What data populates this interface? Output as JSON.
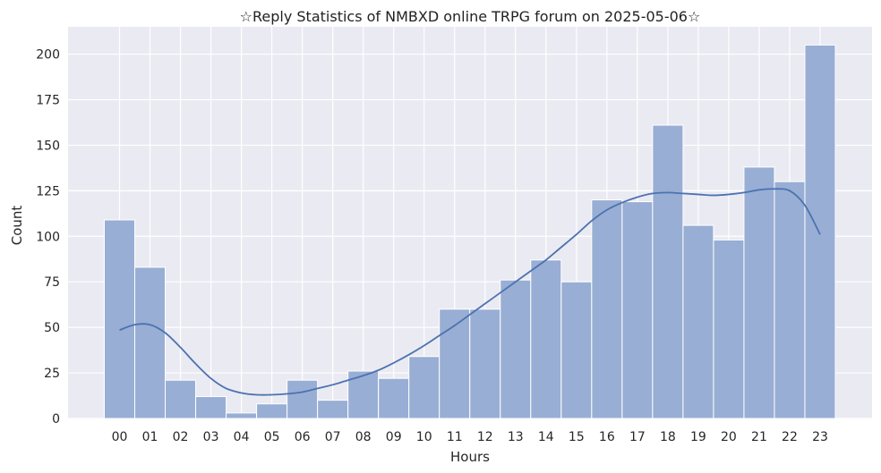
{
  "chart_data": {
    "type": "bar",
    "title": "☆Reply Statistics of NMBXD online TRPG forum on 2025-05-06☆",
    "xlabel": "Hours",
    "ylabel": "Count",
    "categories": [
      "00",
      "01",
      "02",
      "03",
      "04",
      "05",
      "06",
      "07",
      "08",
      "09",
      "10",
      "11",
      "12",
      "13",
      "14",
      "15",
      "16",
      "17",
      "18",
      "19",
      "20",
      "21",
      "22",
      "23"
    ],
    "values": [
      109,
      83,
      21,
      12,
      3,
      8,
      21,
      10,
      26,
      22,
      34,
      60,
      60,
      76,
      87,
      75,
      120,
      119,
      161,
      106,
      98,
      138,
      130,
      205
    ],
    "yticks": [
      0,
      25,
      50,
      75,
      100,
      125,
      150,
      175,
      200
    ],
    "ylim": [
      0,
      215
    ],
    "grid": true,
    "kde": {
      "x": [
        0,
        0.5,
        1,
        1.5,
        2,
        2.5,
        3,
        3.5,
        4,
        4.5,
        5,
        5.5,
        6,
        6.5,
        7,
        7.5,
        8,
        8.5,
        9,
        9.5,
        10,
        10.5,
        11,
        11.5,
        12,
        12.5,
        13,
        13.5,
        14,
        14.5,
        15,
        15.5,
        16,
        16.5,
        17,
        17.5,
        18,
        18.5,
        19,
        19.5,
        20,
        20.5,
        21,
        21.5,
        22,
        22.5,
        23
      ],
      "y": [
        48.5,
        51.5,
        51.5,
        47,
        39,
        30,
        22,
        16.5,
        14,
        13,
        13,
        13.5,
        14.5,
        16.5,
        18.5,
        21,
        23.5,
        26.5,
        30.5,
        35,
        40,
        45.5,
        51,
        57,
        63,
        69,
        75,
        81,
        87,
        94,
        101,
        108.5,
        114.5,
        118.5,
        121.5,
        123.5,
        124,
        123.5,
        123,
        122.5,
        123,
        124,
        125.5,
        126,
        125,
        117,
        101
      ]
    },
    "colors": {
      "background": "#EAEAF2",
      "bar_fill": "#98AED4",
      "bar_stroke": "#FFFFFF",
      "kde_line": "#4C72B0",
      "grid": "#FFFFFF"
    }
  }
}
